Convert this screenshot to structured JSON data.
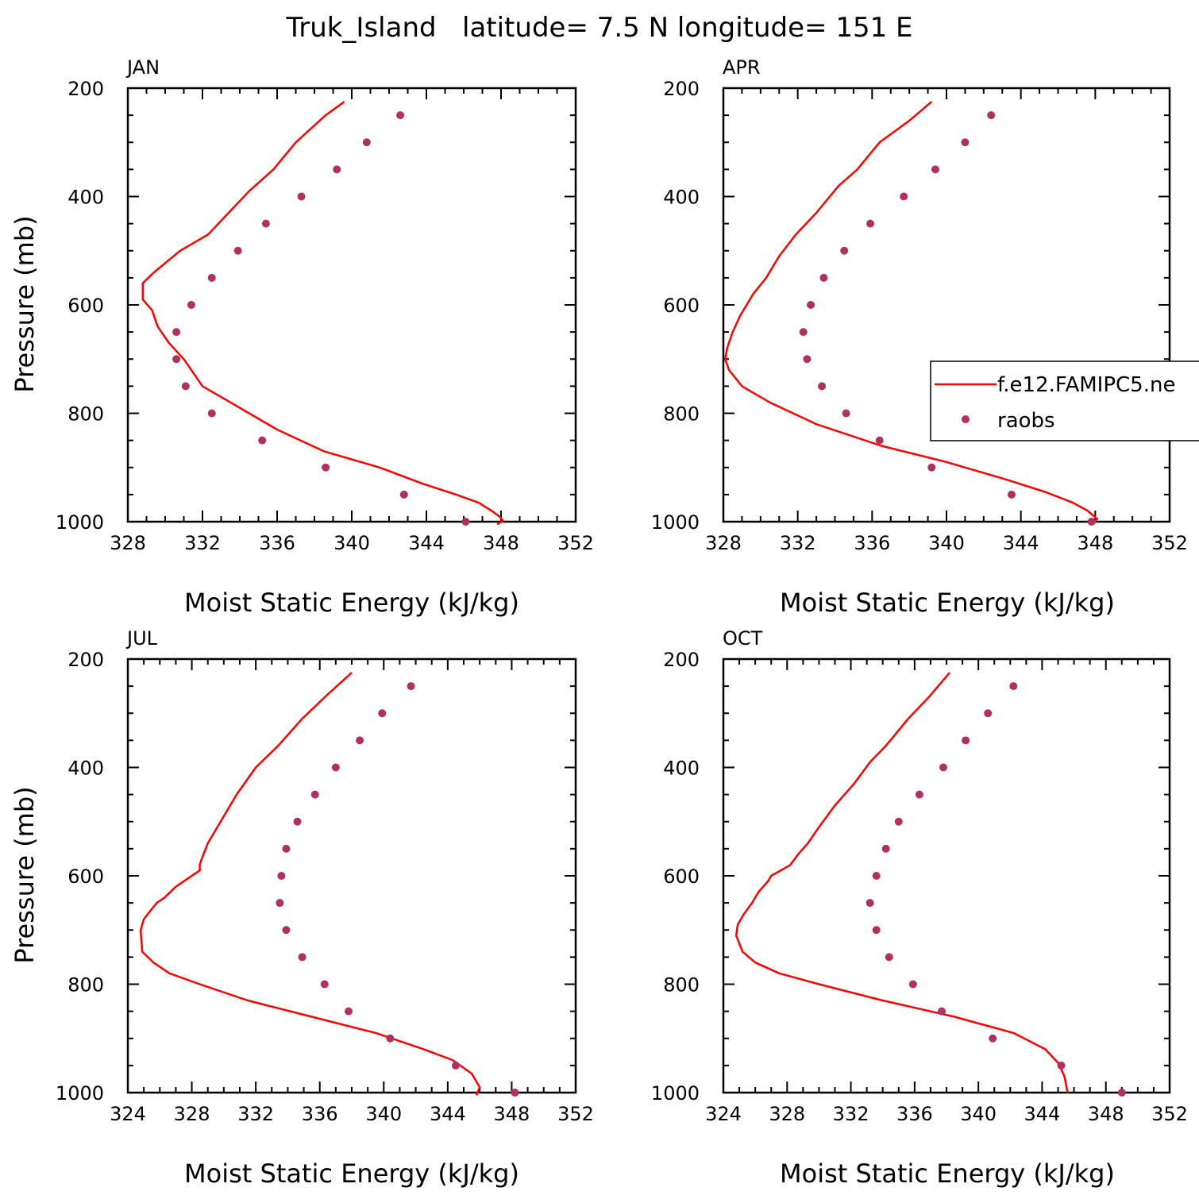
{
  "figure_title": "Truk_Island   latitude= 7.5 N longitude= 151 E",
  "chart_data": [
    {
      "type": "line",
      "title": "JAN",
      "xlabel": "Moist Static Energy (kJ/kg)",
      "ylabel": "Pressure (mb)",
      "xlim": [
        328,
        352
      ],
      "ylim": [
        1000,
        200
      ],
      "xticks": [
        "328",
        "332",
        "336",
        "340",
        "344",
        "348",
        "352"
      ],
      "yticks": [
        "200",
        "400",
        "600",
        "800",
        "1000"
      ],
      "series": [
        {
          "name": "f.e12.FAMIPC5.ne",
          "style": "line",
          "x": [
            339.6,
            338.6,
            337.0,
            335.8,
            334.5,
            333.4,
            332.3,
            330.8,
            329.4,
            328.8,
            328.8,
            329.3,
            329.6,
            330.2,
            331.0,
            332.0,
            333.5,
            336.0,
            338.5,
            341.5,
            343.8,
            345.6,
            346.8,
            347.5,
            347.9,
            348.1,
            347.8
          ],
          "y": [
            225,
            250,
            300,
            350,
            390,
            430,
            470,
            500,
            540,
            560,
            590,
            610,
            640,
            670,
            700,
            750,
            780,
            830,
            870,
            900,
            930,
            950,
            965,
            980,
            990,
            998,
            1005
          ]
        },
        {
          "name": "raobs",
          "style": "markers",
          "x": [
            342.6,
            340.8,
            339.2,
            337.3,
            335.4,
            333.9,
            332.5,
            331.4,
            330.6,
            330.6,
            331.1,
            332.5,
            335.2,
            338.6,
            342.8,
            346.1
          ],
          "y": [
            250,
            300,
            350,
            400,
            450,
            500,
            550,
            600,
            650,
            700,
            750,
            800,
            850,
            900,
            950,
            1000
          ]
        }
      ]
    },
    {
      "type": "line",
      "title": "APR",
      "xlabel": "Moist Static Energy (kJ/kg)",
      "ylabel": "Pressure (mb)",
      "xlim": [
        328,
        352
      ],
      "ylim": [
        1000,
        200
      ],
      "xticks": [
        "328",
        "332",
        "336",
        "340",
        "344",
        "348",
        "352"
      ],
      "yticks": [
        "200",
        "400",
        "600",
        "800",
        "1000"
      ],
      "series": [
        {
          "name": "f.e12.FAMIPC5.ne",
          "style": "line",
          "x": [
            339.2,
            338.0,
            336.4,
            335.2,
            334.2,
            333.0,
            331.9,
            331.0,
            330.3,
            329.6,
            328.9,
            328.5,
            328.2,
            328.1,
            328.3,
            329.0,
            330.5,
            333.0,
            336.5,
            340.0,
            343.0,
            345.3,
            346.8,
            347.6,
            348.1,
            347.9
          ],
          "y": [
            225,
            260,
            300,
            350,
            380,
            430,
            470,
            510,
            550,
            580,
            620,
            650,
            680,
            700,
            720,
            750,
            780,
            820,
            860,
            890,
            920,
            945,
            965,
            980,
            995,
            1002
          ]
        },
        {
          "name": "raobs",
          "style": "markers",
          "x": [
            342.4,
            341.0,
            339.4,
            337.7,
            335.9,
            334.5,
            333.4,
            332.7,
            332.3,
            332.5,
            333.3,
            334.6,
            336.4,
            339.2,
            343.5,
            347.8
          ],
          "y": [
            250,
            300,
            350,
            400,
            450,
            500,
            550,
            600,
            650,
            700,
            750,
            800,
            850,
            900,
            950,
            1000
          ]
        }
      ]
    },
    {
      "type": "line",
      "title": "JUL",
      "xlabel": "Moist Static Energy (kJ/kg)",
      "ylabel": "Pressure (mb)",
      "xlim": [
        324,
        352
      ],
      "ylim": [
        1000,
        200
      ],
      "xticks": [
        "324",
        "328",
        "332",
        "336",
        "340",
        "344",
        "348",
        "352"
      ],
      "yticks": [
        "200",
        "400",
        "600",
        "800",
        "1000"
      ],
      "series": [
        {
          "name": "f.e12.FAMIPC5.ne",
          "style": "line",
          "x": [
            338.0,
            336.5,
            334.9,
            333.4,
            332.0,
            330.8,
            329.8,
            329.0,
            328.6,
            328.5,
            328.5,
            327.0,
            326.3,
            325.8,
            325.0,
            324.8,
            324.9,
            325.6,
            326.6,
            328.5,
            331.5,
            335.5,
            339.5,
            342.5,
            344.3,
            345.5,
            346.0,
            345.8
          ],
          "y": [
            225,
            265,
            310,
            360,
            400,
            450,
            500,
            540,
            570,
            580,
            590,
            620,
            640,
            650,
            680,
            700,
            740,
            760,
            780,
            800,
            830,
            860,
            890,
            920,
            940,
            965,
            990,
            1005
          ]
        },
        {
          "name": "raobs",
          "style": "markers",
          "x": [
            341.7,
            339.9,
            338.5,
            337.0,
            335.7,
            334.6,
            333.9,
            333.6,
            333.5,
            333.9,
            334.9,
            336.3,
            337.8,
            340.4,
            344.5,
            348.2
          ],
          "y": [
            250,
            300,
            350,
            400,
            450,
            500,
            550,
            600,
            650,
            700,
            750,
            800,
            850,
            900,
            950,
            1000
          ]
        }
      ]
    },
    {
      "type": "line",
      "title": "OCT",
      "xlabel": "Moist Static Energy (kJ/kg)",
      "ylabel": "Pressure (mb)",
      "xlim": [
        324,
        352
      ],
      "ylim": [
        1000,
        200
      ],
      "xticks": [
        "324",
        "328",
        "332",
        "336",
        "340",
        "344",
        "348",
        "352"
      ],
      "yticks": [
        "200",
        "400",
        "600",
        "800",
        "1000"
      ],
      "series": [
        {
          "name": "f.e12.FAMIPC5.ne",
          "style": "line",
          "x": [
            338.2,
            336.9,
            335.6,
            334.2,
            333.2,
            332.2,
            331.0,
            330.0,
            329.3,
            328.7,
            328.2,
            327.6,
            327.0,
            326.8,
            326.2,
            325.8,
            325.3,
            324.9,
            324.8,
            325.2,
            326.0,
            327.5,
            330.0,
            334.0,
            338.5,
            342.2,
            344.2,
            345.0,
            345.4,
            345.6
          ],
          "y": [
            225,
            270,
            310,
            360,
            390,
            430,
            470,
            510,
            540,
            560,
            580,
            590,
            600,
            610,
            630,
            650,
            670,
            690,
            710,
            740,
            760,
            780,
            800,
            830,
            860,
            890,
            920,
            945,
            970,
            1000
          ]
        },
        {
          "name": "raobs",
          "style": "markers",
          "x": [
            342.2,
            340.6,
            339.2,
            337.8,
            336.3,
            335.0,
            334.2,
            333.6,
            333.2,
            333.6,
            334.4,
            335.9,
            337.7,
            340.9,
            345.2,
            349.0
          ],
          "y": [
            250,
            300,
            350,
            400,
            450,
            500,
            550,
            600,
            650,
            700,
            750,
            800,
            850,
            900,
            950,
            1000
          ]
        }
      ]
    }
  ],
  "legend": {
    "items": [
      "f.e12.FAMIPC5.ne",
      "raobs"
    ]
  },
  "colors": {
    "model_line": "#ff0000",
    "obs_marker": "#b03060",
    "axis": "#000000"
  }
}
